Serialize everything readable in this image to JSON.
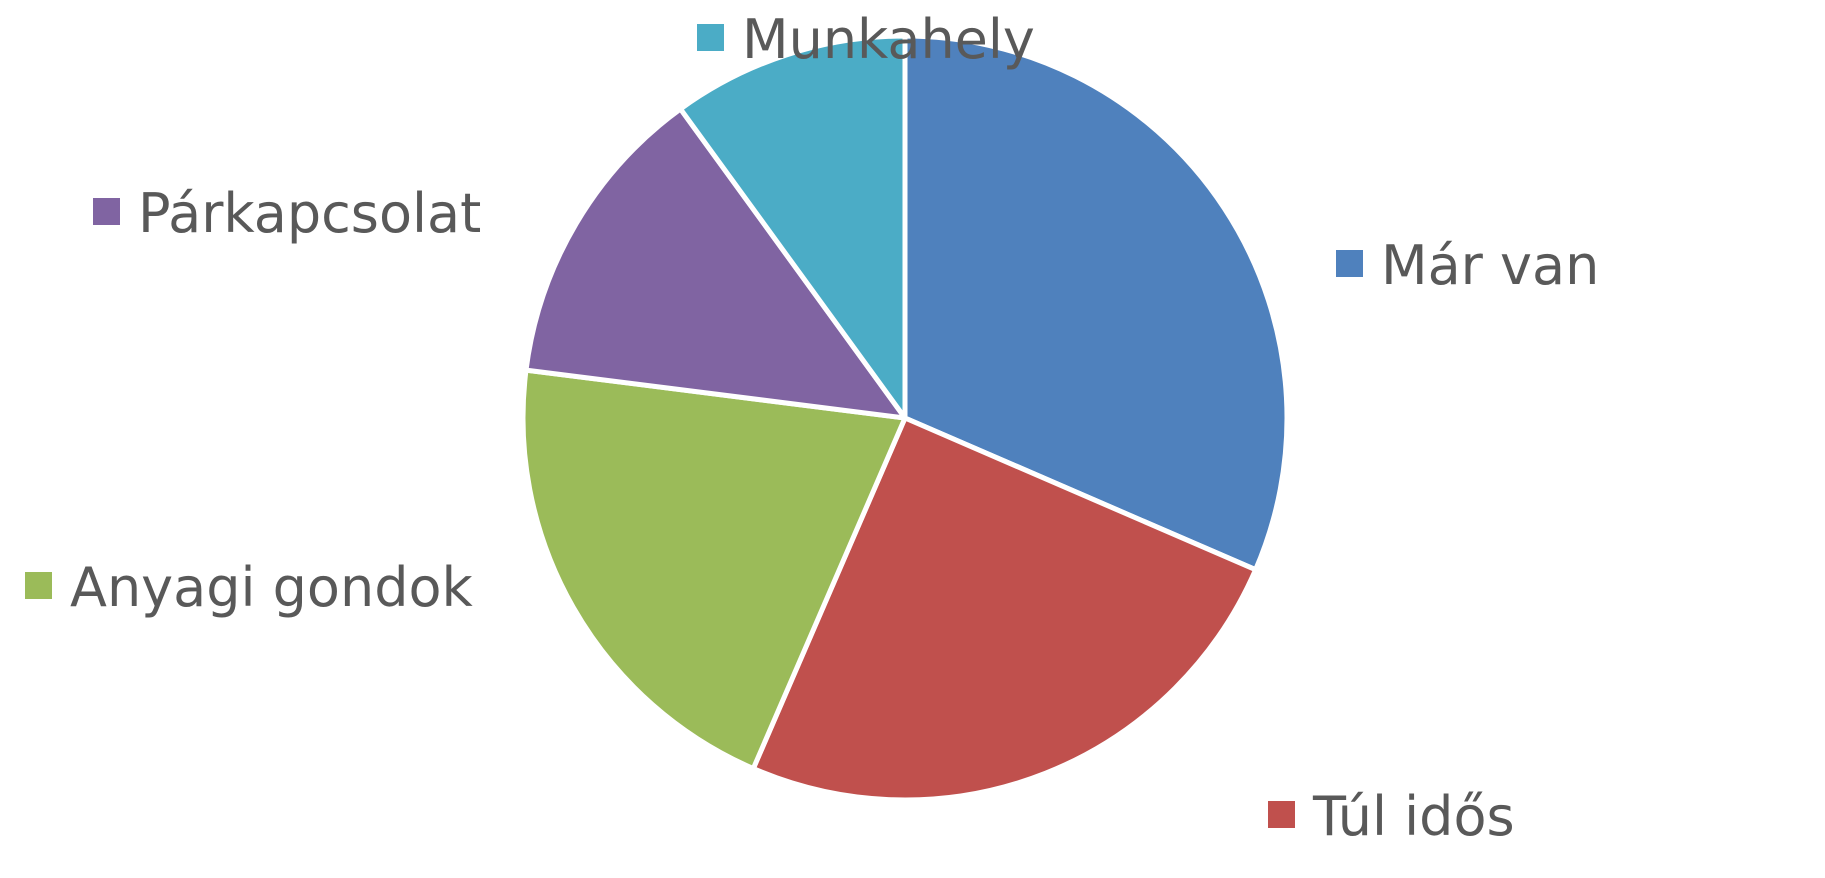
{
  "chart_data": {
    "type": "pie",
    "title": "",
    "start_angle_deg": 0,
    "direction": "clockwise",
    "legend": "labels-outside",
    "slices": [
      {
        "label": "Már van",
        "value": 31.5,
        "color": "#4F81BD"
      },
      {
        "label": "Túl idős",
        "value": 25.0,
        "color": "#C0504D"
      },
      {
        "label": "Anyagi gondok",
        "value": 20.5,
        "color": "#9BBB59"
      },
      {
        "label": "Párkapcsolat",
        "value": 13.0,
        "color": "#8064A2"
      },
      {
        "label": "Munkahely",
        "value": 10.0,
        "color": "#4BACC6"
      }
    ]
  }
}
